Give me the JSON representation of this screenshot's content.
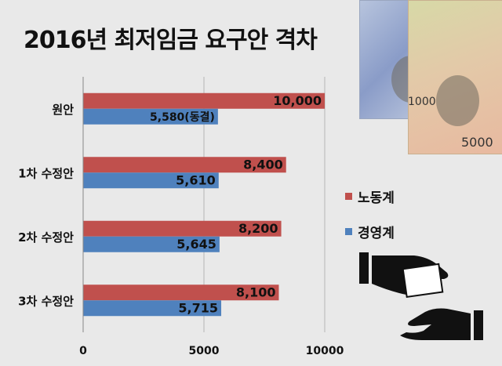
{
  "title": "2016년 최저임금 요구안 격차",
  "chart_data": {
    "type": "bar",
    "orientation": "horizontal",
    "title": "2016년 최저임금 요구안 격차",
    "categories": [
      "원안",
      "1차 수정안",
      "2차 수정안",
      "3차 수정안"
    ],
    "series": [
      {
        "name": "노동계",
        "color": "#c0504d",
        "values": [
          10000,
          8400,
          8200,
          8100
        ],
        "labels": [
          "10,000",
          "8,400",
          "8,200",
          "8,100"
        ]
      },
      {
        "name": "경영계",
        "color": "#4f81bd",
        "values": [
          5580,
          5610,
          5645,
          5715
        ],
        "labels": [
          "5,580(동결)",
          "5,610",
          "5,645",
          "5,715"
        ]
      }
    ],
    "xlim": [
      0,
      10000
    ],
    "xticks": [
      0,
      5000,
      10000
    ],
    "grid": true,
    "legend": "right"
  },
  "decor": {
    "note1_value": "1000",
    "note2_value": "5000",
    "icons": [
      "banknote-icon",
      "banknote-icon",
      "money-handover-icon"
    ]
  }
}
